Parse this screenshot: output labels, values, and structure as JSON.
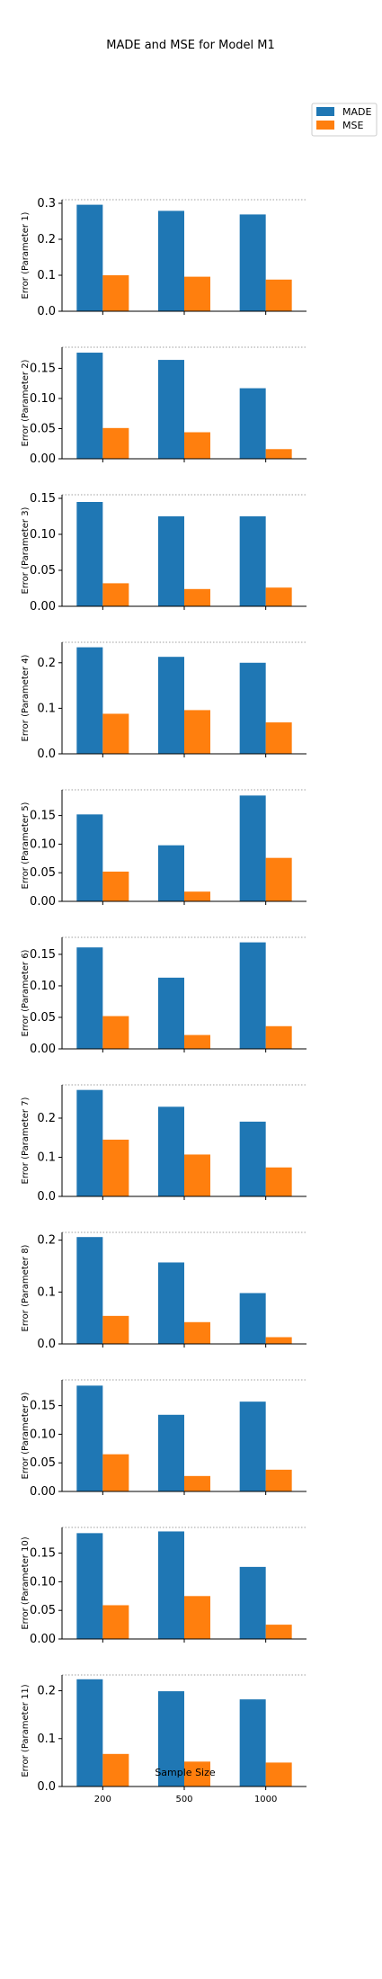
{
  "chart_data": {
    "type": "bar",
    "title": "MADE and MSE for Model M1",
    "xlabel": "Sample Size",
    "categories": [
      "200",
      "500",
      "1000"
    ],
    "legend": {
      "placement": "top-right",
      "entries": [
        "MADE",
        "MSE"
      ]
    },
    "colors": {
      "MADE": "#1f77b4",
      "MSE": "#ff7f0e",
      "grid": "#808080",
      "axis": "#000000"
    },
    "panels": [
      {
        "ylabel": "Error (Parameter 1)",
        "ylim": [
          0,
          0.31
        ],
        "yticks": [
          0.0,
          0.1,
          0.2,
          0.3
        ],
        "tick_format": 1,
        "series": [
          {
            "name": "MADE",
            "values": [
              0.296,
              0.279,
              0.269
            ]
          },
          {
            "name": "MSE",
            "values": [
              0.1,
              0.096,
              0.088
            ]
          }
        ]
      },
      {
        "ylabel": "Error (Parameter 2)",
        "ylim": [
          0,
          0.185
        ],
        "yticks": [
          0.0,
          0.05,
          0.1,
          0.15
        ],
        "tick_format": 2,
        "series": [
          {
            "name": "MADE",
            "values": [
              0.176,
              0.164,
              0.117
            ]
          },
          {
            "name": "MSE",
            "values": [
              0.051,
              0.044,
              0.016
            ]
          }
        ]
      },
      {
        "ylabel": "Error (Parameter 3)",
        "ylim": [
          0,
          0.155
        ],
        "yticks": [
          0.0,
          0.05,
          0.1,
          0.15
        ],
        "tick_format": 2,
        "series": [
          {
            "name": "MADE",
            "values": [
              0.145,
              0.125,
              0.125
            ]
          },
          {
            "name": "MSE",
            "values": [
              0.032,
              0.024,
              0.026
            ]
          }
        ]
      },
      {
        "ylabel": "Error (Parameter 4)",
        "ylim": [
          0,
          0.245
        ],
        "yticks": [
          0.0,
          0.1,
          0.2
        ],
        "tick_format": 1,
        "series": [
          {
            "name": "MADE",
            "values": [
              0.234,
              0.213,
              0.2
            ]
          },
          {
            "name": "MSE",
            "values": [
              0.088,
              0.096,
              0.069
            ]
          }
        ]
      },
      {
        "ylabel": "Error (Parameter 5)",
        "ylim": [
          0,
          0.195
        ],
        "yticks": [
          0.0,
          0.05,
          0.1,
          0.15
        ],
        "tick_format": 2,
        "series": [
          {
            "name": "MADE",
            "values": [
              0.152,
              0.098,
              0.185
            ]
          },
          {
            "name": "MSE",
            "values": [
              0.052,
              0.017,
              0.076
            ]
          }
        ]
      },
      {
        "ylabel": "Error (Parameter 6)",
        "ylim": [
          0,
          0.177
        ],
        "yticks": [
          0.0,
          0.05,
          0.1,
          0.15
        ],
        "tick_format": 2,
        "series": [
          {
            "name": "MADE",
            "values": [
              0.161,
              0.113,
              0.169
            ]
          },
          {
            "name": "MSE",
            "values": [
              0.052,
              0.022,
              0.036
            ]
          }
        ]
      },
      {
        "ylabel": "Error (Parameter 7)",
        "ylim": [
          0,
          0.285
        ],
        "yticks": [
          0.0,
          0.1,
          0.2
        ],
        "tick_format": 1,
        "series": [
          {
            "name": "MADE",
            "values": [
              0.272,
              0.229,
              0.191
            ]
          },
          {
            "name": "MSE",
            "values": [
              0.145,
              0.107,
              0.074
            ]
          }
        ]
      },
      {
        "ylabel": "Error (Parameter 8)",
        "ylim": [
          0,
          0.215
        ],
        "yticks": [
          0.0,
          0.1,
          0.2
        ],
        "tick_format": 1,
        "series": [
          {
            "name": "MADE",
            "values": [
              0.206,
              0.157,
              0.098
            ]
          },
          {
            "name": "MSE",
            "values": [
              0.054,
              0.042,
              0.013
            ]
          }
        ]
      },
      {
        "ylabel": "Error (Parameter 9)",
        "ylim": [
          0,
          0.195
        ],
        "yticks": [
          0.0,
          0.05,
          0.1,
          0.15
        ],
        "tick_format": 2,
        "series": [
          {
            "name": "MADE",
            "values": [
              0.185,
              0.134,
              0.157
            ]
          },
          {
            "name": "MSE",
            "values": [
              0.065,
              0.027,
              0.038
            ]
          }
        ]
      },
      {
        "ylabel": "Error (Parameter 10)",
        "ylim": [
          0,
          0.195
        ],
        "yticks": [
          0.0,
          0.05,
          0.1,
          0.15
        ],
        "tick_format": 2,
        "series": [
          {
            "name": "MADE",
            "values": [
              0.185,
              0.188,
              0.126
            ]
          },
          {
            "name": "MSE",
            "values": [
              0.059,
              0.075,
              0.025
            ]
          }
        ]
      },
      {
        "ylabel": "Error (Parameter 11)",
        "ylim": [
          0,
          0.233
        ],
        "yticks": [
          0.0,
          0.1,
          0.2
        ],
        "tick_format": 1,
        "series": [
          {
            "name": "MADE",
            "values": [
              0.224,
              0.199,
              0.182
            ]
          },
          {
            "name": "MSE",
            "values": [
              0.068,
              0.052,
              0.05
            ]
          }
        ]
      }
    ]
  }
}
